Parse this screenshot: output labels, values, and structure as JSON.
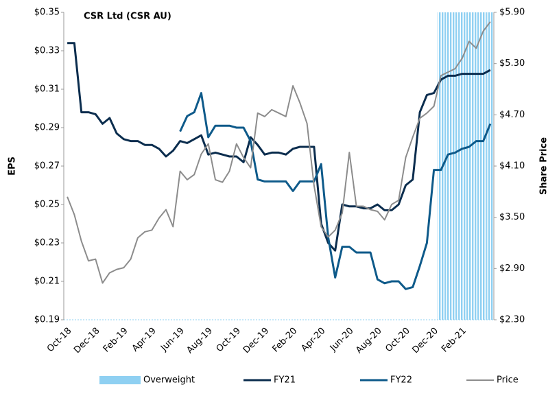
{
  "chart_data": {
    "type": "line",
    "title": "CSR Ltd (CSR AU)",
    "ylabel": "EPS",
    "y2label": "Share Price",
    "categories": [
      "Oct-18",
      null,
      null,
      null,
      "Dec-18",
      null,
      null,
      null,
      "Feb-19",
      null,
      null,
      null,
      "Apr-19",
      null,
      null,
      null,
      "Jun-19",
      null,
      null,
      null,
      "Aug-19",
      null,
      null,
      null,
      "Oct-19",
      null,
      null,
      null,
      "Dec-19",
      null,
      null,
      null,
      "Feb-20",
      null,
      null,
      null,
      "Apr-20",
      null,
      null,
      null,
      "Jun-20",
      null,
      null,
      null,
      "Aug-20",
      null,
      null,
      null,
      "Oct-20",
      null,
      null,
      null,
      "Dec-20",
      null,
      null,
      null,
      "Feb-21",
      null,
      null,
      null,
      null
    ],
    "ylim": [
      0.19,
      0.35
    ],
    "yticks": [
      {
        "value": 0.19,
        "label": "$0.19"
      },
      {
        "value": 0.21,
        "label": "$0.21"
      },
      {
        "value": 0.23,
        "label": "$0.23"
      },
      {
        "value": 0.25,
        "label": "$0.25"
      },
      {
        "value": 0.27,
        "label": "$0.27"
      },
      {
        "value": 0.29,
        "label": "$0.29"
      },
      {
        "value": 0.31,
        "label": "$0.31"
      },
      {
        "value": 0.33,
        "label": "$0.33"
      },
      {
        "value": 0.35,
        "label": "$0.35"
      }
    ],
    "y2lim": [
      2.3,
      5.9
    ],
    "y2ticks": [
      {
        "value": 2.3,
        "label": "$2.30"
      },
      {
        "value": 2.9,
        "label": "$2.90"
      },
      {
        "value": 3.5,
        "label": "$3.50"
      },
      {
        "value": 4.1,
        "label": "$4.10"
      },
      {
        "value": 4.7,
        "label": "$4.70"
      },
      {
        "value": 5.3,
        "label": "$5.30"
      },
      {
        "value": 5.9,
        "label": "$5.90"
      }
    ],
    "series": [
      {
        "name": "Overweight",
        "type": "bar",
        "color": "#8fd0f2",
        "values": [
          null,
          null,
          null,
          null,
          null,
          null,
          null,
          null,
          null,
          null,
          null,
          null,
          null,
          null,
          null,
          null,
          null,
          null,
          null,
          null,
          null,
          null,
          null,
          null,
          null,
          null,
          null,
          null,
          null,
          null,
          null,
          null,
          null,
          null,
          null,
          null,
          null,
          null,
          null,
          null,
          null,
          null,
          null,
          null,
          null,
          null,
          null,
          null,
          null,
          null,
          null,
          null,
          null,
          0.35,
          0.35,
          0.35,
          0.35,
          0.35,
          0.35,
          0.35,
          0.35
        ]
      },
      {
        "name": "FY21",
        "type": "line",
        "color": "#0b2d4e",
        "values": [
          0.334,
          0.334,
          0.298,
          0.298,
          0.297,
          0.292,
          0.295,
          0.287,
          0.284,
          0.283,
          0.283,
          0.281,
          0.281,
          0.279,
          0.275,
          0.278,
          0.283,
          0.282,
          0.284,
          0.286,
          0.276,
          0.277,
          0.276,
          0.275,
          0.275,
          0.272,
          0.285,
          0.281,
          0.276,
          0.277,
          0.277,
          0.276,
          0.279,
          0.28,
          0.28,
          0.28,
          0.24,
          0.23,
          0.226,
          0.25,
          0.249,
          0.249,
          0.248,
          0.248,
          0.25,
          0.247,
          0.247,
          0.25,
          0.26,
          0.263,
          0.298,
          0.307,
          0.308,
          0.315,
          0.317,
          0.317,
          0.318,
          0.318,
          0.318,
          0.318,
          0.32
        ]
      },
      {
        "name": "FY22",
        "type": "line",
        "color": "#0e5a8a",
        "values": [
          null,
          null,
          null,
          null,
          null,
          null,
          null,
          null,
          null,
          null,
          null,
          null,
          null,
          null,
          null,
          null,
          0.288,
          0.296,
          0.298,
          0.308,
          0.285,
          0.291,
          0.291,
          0.291,
          0.29,
          0.29,
          0.283,
          0.263,
          0.262,
          0.262,
          0.262,
          0.262,
          0.257,
          0.262,
          0.262,
          0.262,
          0.271,
          0.233,
          0.212,
          0.228,
          0.228,
          0.225,
          0.225,
          0.225,
          0.211,
          0.209,
          0.21,
          0.21,
          0.206,
          0.207,
          0.218,
          0.23,
          0.268,
          0.268,
          0.276,
          0.277,
          0.279,
          0.28,
          0.283,
          0.283,
          0.292
        ]
      },
      {
        "name": "Price",
        "type": "line",
        "axis": "y2",
        "color": "#8c8c8c",
        "values": [
          3.74,
          3.53,
          3.22,
          2.99,
          3.01,
          2.73,
          2.85,
          2.89,
          2.91,
          3.01,
          3.26,
          3.33,
          3.35,
          3.49,
          3.59,
          3.39,
          4.04,
          3.94,
          4.0,
          4.24,
          4.36,
          3.94,
          3.91,
          4.04,
          4.36,
          4.2,
          4.08,
          4.72,
          4.68,
          4.76,
          4.72,
          4.68,
          5.04,
          4.84,
          4.6,
          3.87,
          3.39,
          3.27,
          3.35,
          3.55,
          4.26,
          3.63,
          3.63,
          3.59,
          3.57,
          3.47,
          3.65,
          3.7,
          4.2,
          4.44,
          4.66,
          4.72,
          4.8,
          5.16,
          5.2,
          5.24,
          5.36,
          5.56,
          5.48,
          5.68,
          5.79
        ]
      }
    ]
  }
}
